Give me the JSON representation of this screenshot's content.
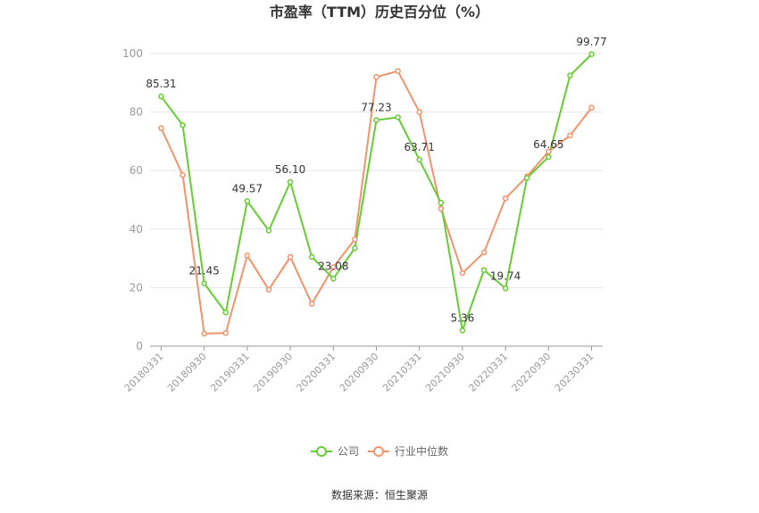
{
  "chart_data": {
    "type": "line",
    "title": "市盈率（TTM）历史百分位（%）",
    "ylim": [
      0,
      100
    ],
    "yticks": [
      0,
      20,
      40,
      60,
      80,
      100
    ],
    "grid": true,
    "legend_position": "bottom",
    "x": [
      "20180331",
      "20180630",
      "20180930",
      "20181231",
      "20190331",
      "20190630",
      "20190930",
      "20191231",
      "20200331",
      "20200630",
      "20200930",
      "20201231",
      "20210331",
      "20210630",
      "20210930",
      "20211231",
      "20220331",
      "20220630",
      "20220930",
      "20221231",
      "20230331"
    ],
    "x_tick_labels": [
      "20180331",
      "20180930",
      "20190331",
      "20190930",
      "20200331",
      "20200930",
      "20210331",
      "20210930",
      "20220331",
      "20220930",
      "20230331"
    ],
    "series": [
      {
        "name": "公司",
        "color": "#66cc33",
        "values": [
          85.31,
          75.5,
          21.45,
          11.5,
          49.57,
          39.5,
          56.1,
          30.5,
          23.08,
          33.5,
          77.23,
          78.2,
          63.71,
          49.0,
          5.36,
          26.0,
          19.74,
          57.5,
          64.65,
          92.5,
          99.77
        ],
        "labeled_indices": [
          0,
          2,
          4,
          6,
          8,
          10,
          12,
          14,
          16,
          18,
          20
        ],
        "data_labels": [
          "85.31",
          "21.45",
          "49.57",
          "56.10",
          "23.08",
          "77.23",
          "63.71",
          "5.36",
          "19.74",
          "64.65",
          "99.77"
        ]
      },
      {
        "name": "行业中位数",
        "color": "#f2936b",
        "values": [
          74.5,
          58.5,
          4.3,
          4.5,
          31.0,
          19.3,
          30.5,
          14.5,
          27.0,
          36.5,
          92.0,
          94.0,
          80.0,
          47.0,
          25.0,
          32.0,
          50.5,
          58.0,
          66.5,
          72.0,
          81.5
        ]
      }
    ],
    "source": "数据来源：恒生聚源"
  }
}
